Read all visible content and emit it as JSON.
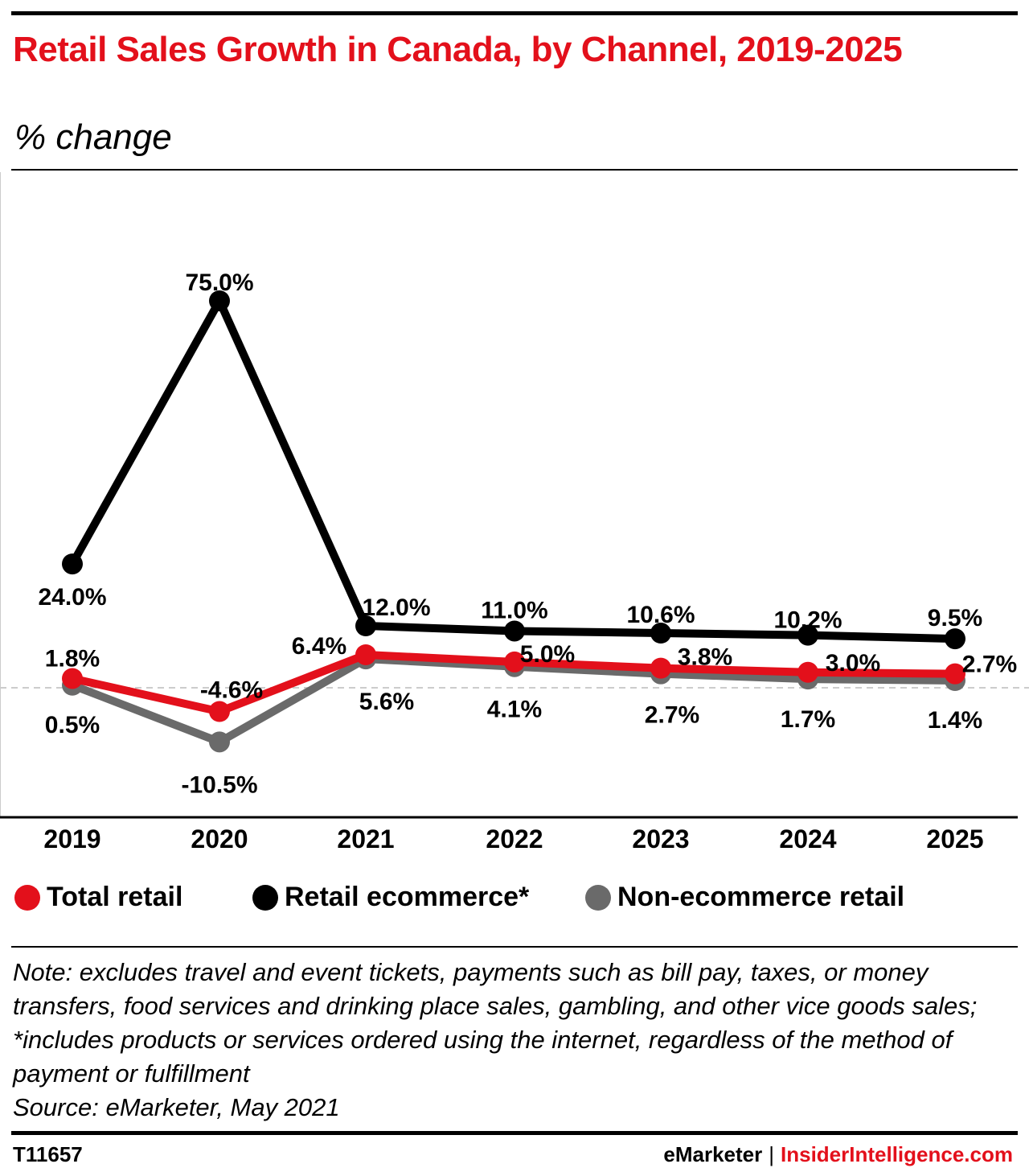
{
  "header": {
    "title": "Retail Sales Growth in Canada, by Channel, 2019-2025",
    "subtitle": "% change"
  },
  "colors": {
    "accent": "#e3101b",
    "total_retail": "#e3101b",
    "retail_ecommerce": "#000000",
    "non_ecommerce_retail": "#6a6a6a"
  },
  "chart_data": {
    "type": "line",
    "title": "Retail Sales Growth in Canada, by Channel, 2019-2025",
    "subtitle": "% change",
    "x": [
      "2019",
      "2020",
      "2021",
      "2022",
      "2023",
      "2024",
      "2025"
    ],
    "ylim": [
      -20,
      90
    ],
    "grid": false,
    "zero_line": "dashed",
    "legend_position": "bottom",
    "series": [
      {
        "name": "Total retail",
        "color": "#e3101b",
        "values": [
          1.8,
          -4.6,
          6.4,
          5.0,
          3.8,
          3.0,
          2.7
        ],
        "labels": [
          "1.8%",
          "-4.6%",
          "6.4%",
          "5.0%",
          "3.8%",
          "3.0%",
          "2.7%"
        ]
      },
      {
        "name": "Retail ecommerce*",
        "color": "#000000",
        "values": [
          24.0,
          75.0,
          12.0,
          11.0,
          10.6,
          10.2,
          9.5
        ],
        "labels": [
          "24.0%",
          "75.0%",
          "12.0%",
          "11.0%",
          "10.6%",
          "10.2%",
          "9.5%"
        ]
      },
      {
        "name": "Non-ecommerce retail",
        "color": "#6a6a6a",
        "values": [
          0.5,
          -10.5,
          5.6,
          4.1,
          2.7,
          1.7,
          1.4
        ],
        "labels": [
          "0.5%",
          "-10.5%",
          "5.6%",
          "4.1%",
          "2.7%",
          "1.7%",
          "1.4%"
        ]
      }
    ]
  },
  "note": {
    "text": "Note: excludes travel and event tickets, payments such as bill pay, taxes, or money transfers, food services and drinking place sales, gambling, and other vice goods sales; *includes products or services ordered using the internet, regardless of the method of payment or fulfillment",
    "source": "Source: eMarketer, May 2021"
  },
  "footer": {
    "id": "T11657",
    "brand": "eMarketer",
    "separator": "|",
    "site": "InsiderIntelligence.com"
  }
}
